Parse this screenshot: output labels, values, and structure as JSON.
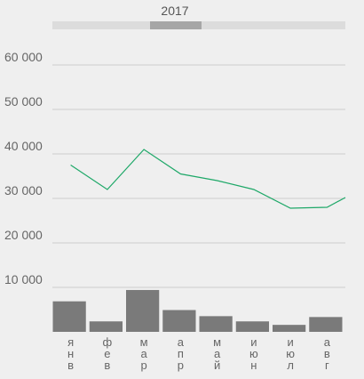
{
  "chart_data": {
    "type": "line",
    "title": "",
    "header": {
      "year_label": "2017"
    },
    "categories": [
      "янв",
      "фев",
      "мар",
      "апр",
      "май",
      "июн",
      "июл",
      "авг"
    ],
    "y_ticks": [
      "60 000",
      "50 000",
      "40 000",
      "30 000",
      "20 000",
      "10 000"
    ],
    "y_tick_values": [
      60000,
      50000,
      40000,
      30000,
      20000,
      10000
    ],
    "ylim": [
      0,
      60000
    ],
    "series": [
      {
        "type": "line",
        "values": [
          37500,
          32000,
          41000,
          35500,
          34000,
          32000,
          27800,
          28000
        ],
        "extension_value": 30200,
        "color": "#1ea868"
      },
      {
        "type": "bar",
        "values": [
          3500,
          1200,
          4800,
          2500,
          1800,
          1200,
          800,
          1700
        ],
        "color": "#7a7a7a"
      }
    ],
    "grid": true,
    "legend": "none",
    "colors": {
      "background": "#efefef",
      "grid": "#cccccc",
      "scroll_track": "#dcdcdc",
      "scroll_thumb": "#a6a6a6"
    }
  }
}
